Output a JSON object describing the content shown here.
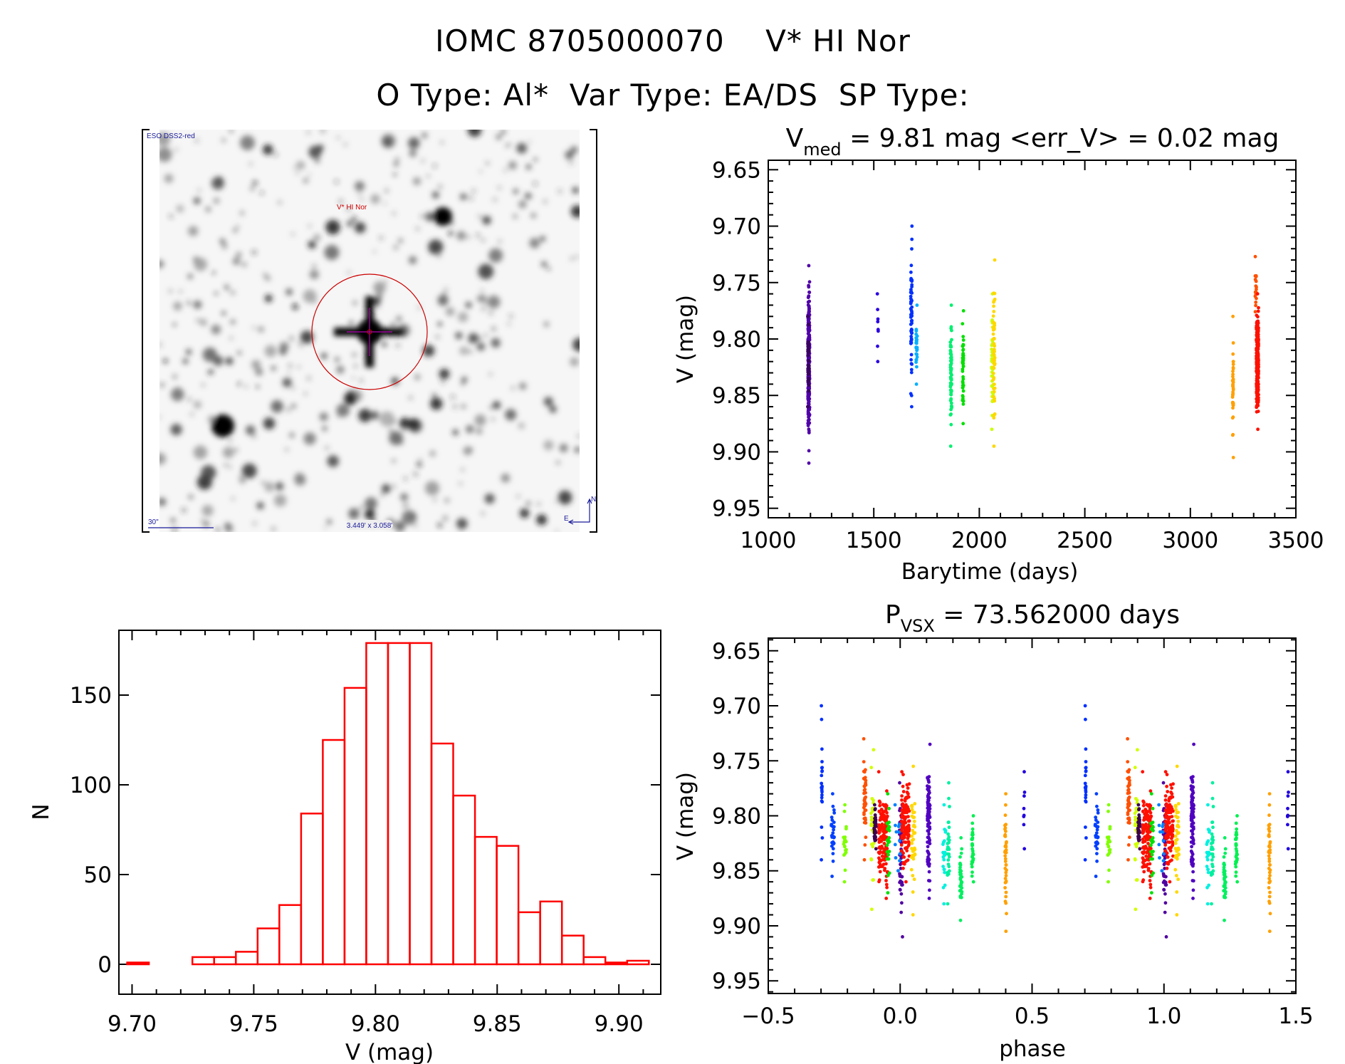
{
  "header": {
    "title_line1": "IOMC 8705000070    V* HI Nor",
    "title_line2": "O Type: Al*  Var Type: EA/DS  SP Type:"
  },
  "finder_chart": {
    "survey_label": "ESO DSS2-red",
    "object_label": "V* HI Nor",
    "scale_label": "30\"",
    "fov_label": "3.449' x 3.058'",
    "north_label": "N",
    "east_label": "E",
    "circle_color": "#cc0000",
    "marker_color": "#b000b0"
  },
  "chart_data": [
    {
      "id": "light_curve",
      "type": "scatter",
      "title_main": "V",
      "title_sub": "med",
      "title_rest": " = 9.81 mag <err_V> = 0.02 mag",
      "xlabel": "Barytime (days)",
      "ylabel": "V (mag)",
      "xlim": [
        1000,
        3500
      ],
      "ylim": [
        9.95,
        9.65
      ],
      "xticks": [
        "1000",
        "1500",
        "2000",
        "2500",
        "3000",
        "3500"
      ],
      "yticks": [
        "9.65",
        "9.70",
        "9.75",
        "9.80",
        "9.85",
        "9.90",
        "9.95"
      ],
      "clusters": [
        {
          "x": 1192,
          "spread": 8,
          "ymin": 9.735,
          "ymax": 9.91,
          "n": 260,
          "color": "#5000a8"
        },
        {
          "x": 1190,
          "spread": 6,
          "ymin": 9.78,
          "ymax": 9.86,
          "n": 40,
          "color": "#3a0060"
        },
        {
          "x": 1519,
          "spread": 4,
          "ymin": 9.76,
          "ymax": 9.82,
          "n": 8,
          "color": "#2a00e0"
        },
        {
          "x": 1678,
          "spread": 6,
          "ymin": 9.7,
          "ymax": 9.86,
          "n": 60,
          "color": "#0030ff"
        },
        {
          "x": 1703,
          "spread": 6,
          "ymin": 9.77,
          "ymax": 9.84,
          "n": 25,
          "color": "#00b0ff"
        },
        {
          "x": 1866,
          "spread": 6,
          "ymin": 9.77,
          "ymax": 9.895,
          "n": 70,
          "color": "#00f070"
        },
        {
          "x": 1923,
          "spread": 5,
          "ymin": 9.775,
          "ymax": 9.875,
          "n": 50,
          "color": "#00e000"
        },
        {
          "x": 2062,
          "spread": 8,
          "ymin": 9.76,
          "ymax": 9.88,
          "n": 40,
          "color": "#c8ff00"
        },
        {
          "x": 2070,
          "spread": 8,
          "ymin": 9.73,
          "ymax": 9.895,
          "n": 60,
          "color": "#ffd800"
        },
        {
          "x": 3202,
          "spread": 4,
          "ymin": 9.78,
          "ymax": 9.905,
          "n": 45,
          "color": "#ffa000"
        },
        {
          "x": 3310,
          "spread": 6,
          "ymin": 9.727,
          "ymax": 9.79,
          "n": 20,
          "color": "#ff5000"
        },
        {
          "x": 3318,
          "spread": 10,
          "ymin": 9.76,
          "ymax": 9.88,
          "n": 260,
          "color": "#ff1000"
        }
      ]
    },
    {
      "id": "phased_curve",
      "type": "scatter",
      "title_main": "P",
      "title_sub": "VSX",
      "title_rest": " = 73.562000 days",
      "xlabel": "phase",
      "ylabel": "V (mag)",
      "xlim": [
        -0.5,
        1.5
      ],
      "ylim": [
        9.95,
        9.65
      ],
      "xticks": [
        "−0.5",
        "0.0",
        "0.5",
        "1.0",
        "1.5"
      ],
      "yticks": [
        "9.65",
        "9.70",
        "9.75",
        "9.80",
        "9.85",
        "9.90",
        "9.95"
      ],
      "repeat_offset": 1.0,
      "clusters": [
        {
          "x": -0.297,
          "spread": 0.004,
          "ymin": 9.7,
          "ymax": 9.84,
          "n": 22,
          "color": "#0030ff"
        },
        {
          "x": -0.255,
          "spread": 0.012,
          "ymin": 9.78,
          "ymax": 9.855,
          "n": 30,
          "color": "#0040ff"
        },
        {
          "x": -0.209,
          "spread": 0.012,
          "ymin": 9.79,
          "ymax": 9.86,
          "n": 20,
          "color": "#80ff00"
        },
        {
          "x": -0.134,
          "spread": 0.008,
          "ymin": 9.73,
          "ymax": 9.84,
          "n": 45,
          "color": "#ff5000"
        },
        {
          "x": -0.105,
          "spread": 0.01,
          "ymin": 9.74,
          "ymax": 9.885,
          "n": 30,
          "color": "#d0ff00"
        },
        {
          "x": -0.095,
          "spread": 0.008,
          "ymin": 9.79,
          "ymax": 9.83,
          "n": 35,
          "color": "#3a0050"
        },
        {
          "x": -0.065,
          "spread": 0.035,
          "ymin": 9.76,
          "ymax": 9.875,
          "n": 140,
          "color": "#ff1000"
        },
        {
          "x": -0.045,
          "spread": 0.01,
          "ymin": 9.78,
          "ymax": 9.87,
          "n": 25,
          "color": "#00e000"
        },
        {
          "x": 0.003,
          "spread": 0.012,
          "ymin": 9.77,
          "ymax": 9.91,
          "n": 50,
          "color": "#5000a0"
        },
        {
          "x": 0.02,
          "spread": 0.03,
          "ymin": 9.76,
          "ymax": 9.86,
          "n": 120,
          "color": "#ff1000"
        },
        {
          "x": 0.05,
          "spread": 0.014,
          "ymin": 9.755,
          "ymax": 9.89,
          "n": 40,
          "color": "#ffd800"
        },
        {
          "x": -0.01,
          "spread": 0.02,
          "ymin": 9.79,
          "ymax": 9.85,
          "n": 12,
          "color": "#0080ff"
        },
        {
          "x": 0.108,
          "spread": 0.01,
          "ymin": 9.735,
          "ymax": 9.875,
          "n": 90,
          "color": "#5000c0"
        },
        {
          "x": 0.167,
          "spread": 0.01,
          "ymin": 9.79,
          "ymax": 9.88,
          "n": 20,
          "color": "#00f0e0"
        },
        {
          "x": 0.183,
          "spread": 0.008,
          "ymin": 9.77,
          "ymax": 9.88,
          "n": 30,
          "color": "#00f0a0"
        },
        {
          "x": 0.23,
          "spread": 0.008,
          "ymin": 9.82,
          "ymax": 9.895,
          "n": 35,
          "color": "#00f060"
        },
        {
          "x": 0.274,
          "spread": 0.008,
          "ymin": 9.8,
          "ymax": 9.86,
          "n": 30,
          "color": "#00f050"
        },
        {
          "x": 0.4,
          "spread": 0.006,
          "ymin": 9.78,
          "ymax": 9.905,
          "n": 40,
          "color": "#ffa000"
        },
        {
          "x": 0.47,
          "spread": 0.004,
          "ymin": 9.76,
          "ymax": 9.83,
          "n": 8,
          "color": "#2000e0"
        }
      ]
    },
    {
      "id": "histogram",
      "type": "bar",
      "xlabel": "V (mag)",
      "ylabel": "N",
      "xlim": [
        9.6946,
        9.9172
      ],
      "ylim": [
        0,
        185
      ],
      "bin_start": 9.698,
      "bin_width": 0.00893,
      "counts": [
        1,
        0,
        0,
        4,
        4,
        7,
        20,
        33,
        84,
        125,
        154,
        179,
        179,
        179,
        123,
        94,
        71,
        66,
        29,
        35,
        16,
        4,
        1,
        2
      ],
      "bar_color": "#ff0000",
      "xticks": [
        "9.70",
        "9.75",
        "9.80",
        "9.85",
        "9.90"
      ],
      "yticks": [
        "0",
        "50",
        "100",
        "150"
      ]
    }
  ]
}
